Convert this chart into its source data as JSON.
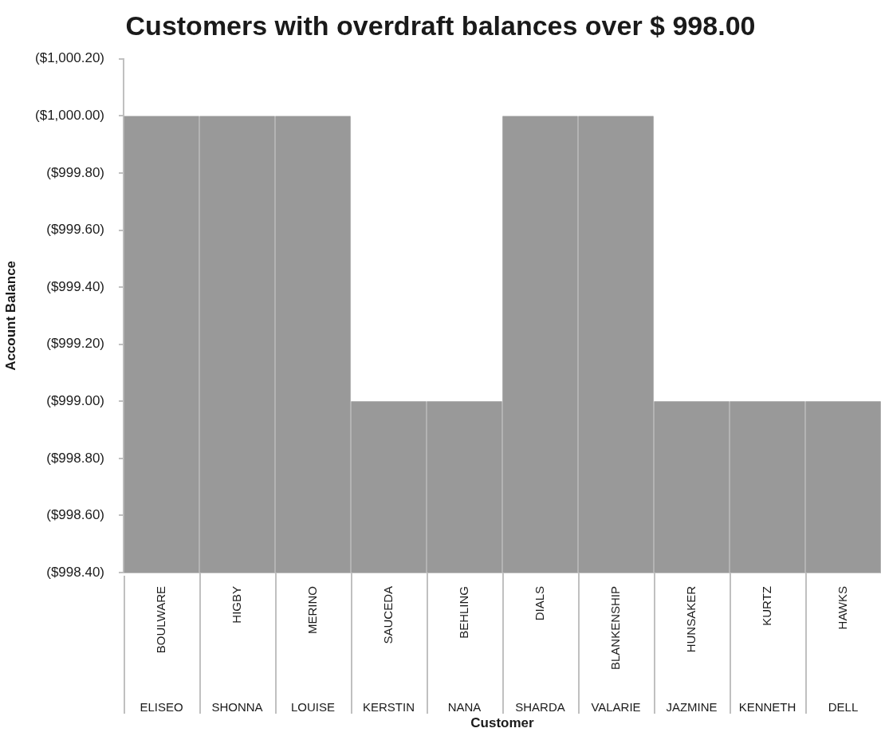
{
  "chart_data": {
    "type": "bar",
    "title": "Customers with overdraft balances over $ 998.00",
    "xlabel": "Customer",
    "ylabel": "Account Balance",
    "categories": [
      "BOULWARE",
      "HIGBY",
      "MERINO",
      "SAUCEDA",
      "BEHLING",
      "DIALS",
      "BLANKENSHIP",
      "HUNSAKER",
      "KURTZ",
      "HAWKS"
    ],
    "values": [
      -1000.0,
      -1000.0,
      -1000.0,
      -999.0,
      -999.0,
      -1000.0,
      -1000.0,
      -999.0,
      -999.0,
      -999.0
    ],
    "color": "#999999",
    "ylim": [
      -998.4,
      -1000.2
    ],
    "yticks": [
      {
        "value": -998.4,
        "label": "($998.40)"
      },
      {
        "value": -998.6,
        "label": "($998.60)"
      },
      {
        "value": -998.8,
        "label": "($998.80)"
      },
      {
        "value": -999.0,
        "label": "($999.00)"
      },
      {
        "value": -999.2,
        "label": "($999.20)"
      },
      {
        "value": -999.4,
        "label": "($999.40)"
      },
      {
        "value": -999.6,
        "label": "($999.60)"
      },
      {
        "value": -999.8,
        "label": "($999.80)"
      },
      {
        "value": -1000.0,
        "label": "($1,000.00)"
      },
      {
        "value": -1000.2,
        "label": "($1,000.20)"
      }
    ],
    "annotations": [
      "ELISEO",
      "SHONNA",
      "LOUISE",
      "KERSTIN",
      "NANA",
      "SHARDA",
      "VALARIE",
      "JAZMINE",
      "KENNETH",
      "DELL"
    ]
  }
}
